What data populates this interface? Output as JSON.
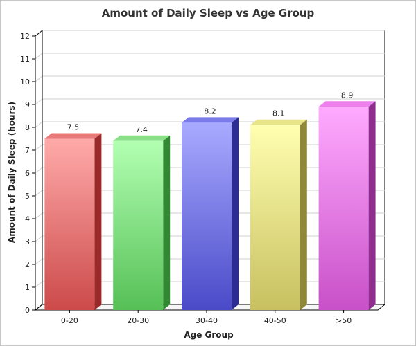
{
  "chart_data": {
    "type": "bar",
    "title": "Amount of Daily Sleep vs Age Group",
    "xlabel": "Age Group",
    "ylabel": "Amount of Daily Sleep (hours)",
    "categories": [
      "0-20",
      "20-30",
      "30-40",
      "40-50",
      ">50"
    ],
    "values": [
      7.5,
      7.4,
      8.2,
      8.1,
      8.9
    ],
    "value_labels": [
      "7.5",
      "7.4",
      "8.2",
      "8.1",
      "8.9"
    ],
    "ylim": [
      0,
      12
    ],
    "yticks": [
      "0",
      "1",
      "2",
      "3",
      "4",
      "5",
      "6",
      "7",
      "8",
      "9",
      "10",
      "11",
      "12"
    ],
    "grid": true,
    "legend": "none",
    "style": "3d",
    "colors": [
      {
        "top": "#ffaaaa",
        "bottom": "#cc4a4a",
        "side": "#9a2a2a",
        "cap": "#ea7a7a"
      },
      {
        "top": "#b2ffb2",
        "bottom": "#56c056",
        "side": "#318a31",
        "cap": "#8ae08a"
      },
      {
        "top": "#a8aaff",
        "bottom": "#4a4ac8",
        "side": "#2c2c92",
        "cap": "#7a7ae8"
      },
      {
        "top": "#ffffb0",
        "bottom": "#c8c060",
        "side": "#8e8838",
        "cap": "#e8e48a"
      },
      {
        "top": "#ffaaff",
        "bottom": "#c850c8",
        "side": "#902e90",
        "cap": "#ee80ee"
      }
    ]
  }
}
